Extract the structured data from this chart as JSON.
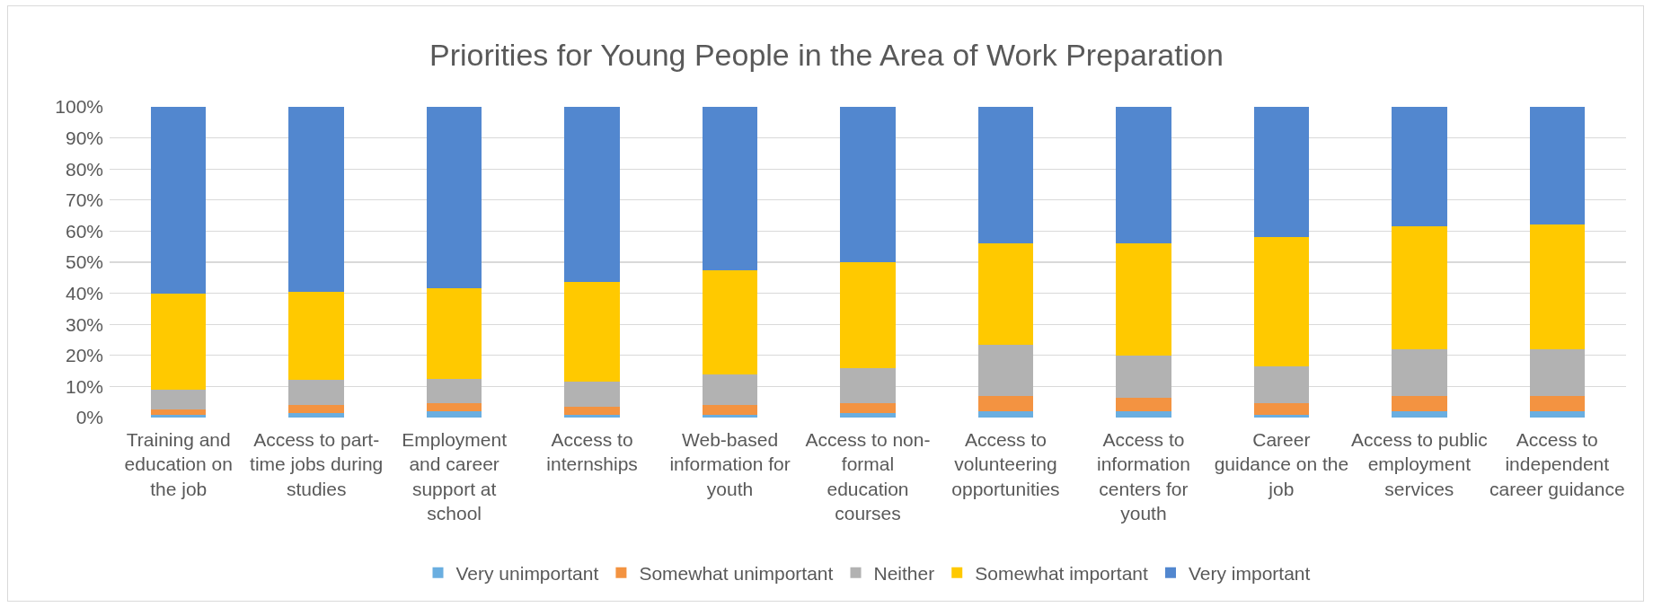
{
  "chart_data": {
    "type": "bar",
    "title": "Priorities for Young People in the Area of Work Preparation",
    "categories": [
      "Training and education on the job",
      "Access to part-time jobs during studies",
      "Employment and career support at school",
      "Access to internships",
      "Web-based information for youth",
      "Access to non-formal education courses",
      "Access to volunteering opportunities",
      "Access to information centers for youth",
      "Career guidance on the job",
      "Access to public employment services",
      "Access to independent career guidance"
    ],
    "stacked": true,
    "series": [
      {
        "name": "Very unimportant",
        "color": "#6aaee0",
        "values": [
          1,
          1.5,
          2,
          1,
          1,
          1.5,
          2,
          2,
          1,
          2,
          2
        ]
      },
      {
        "name": "Somewhat unimportant",
        "color": "#f39341",
        "values": [
          1.5,
          2.5,
          2.5,
          2.5,
          3,
          3,
          5,
          4.5,
          3.5,
          5,
          5
        ]
      },
      {
        "name": "Neither",
        "color": "#b2b2b2",
        "values": [
          6.5,
          8,
          8,
          8,
          10,
          11.5,
          16.5,
          13.5,
          12,
          15,
          15
        ]
      },
      {
        "name": "Somewhat important",
        "color": "#ffc900",
        "values": [
          31,
          28.5,
          29,
          32,
          33.5,
          34,
          32.5,
          36,
          41.5,
          39.5,
          40
        ]
      },
      {
        "name": "Very important",
        "color": "#5287cf",
        "values": [
          60,
          59.5,
          58.5,
          56.5,
          52.5,
          50,
          44,
          44,
          42,
          38.5,
          38
        ]
      }
    ],
    "ylim": [
      0,
      100
    ],
    "yticks": [
      {
        "value": 0,
        "label": "0%"
      },
      {
        "value": 10,
        "label": "10%"
      },
      {
        "value": 20,
        "label": "20%"
      },
      {
        "value": 30,
        "label": "30%"
      },
      {
        "value": 40,
        "label": "40%"
      },
      {
        "value": 50,
        "label": "50%"
      },
      {
        "value": 60,
        "label": "60%"
      },
      {
        "value": 70,
        "label": "70%"
      },
      {
        "value": 80,
        "label": "80%"
      },
      {
        "value": 90,
        "label": "90%"
      },
      {
        "value": 100,
        "label": "100%"
      }
    ],
    "grid": "y",
    "legend": "bottom"
  }
}
